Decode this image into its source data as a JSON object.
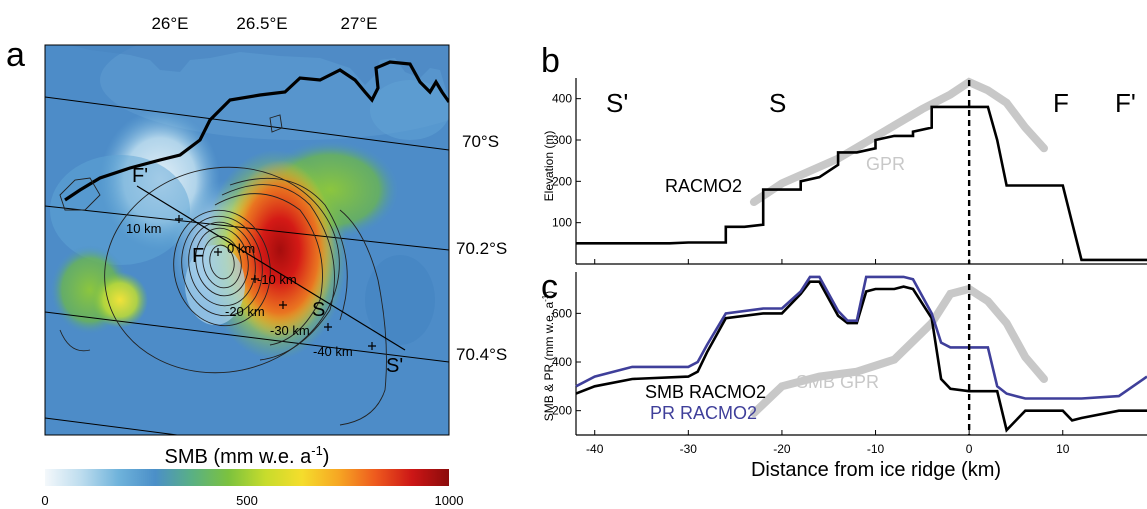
{
  "map_panel": {
    "panel_letter": "a",
    "lon_ticks": [
      "26°E",
      "26.5°E",
      "27°E"
    ],
    "lat_ticks": [
      "70°S",
      "70.2°S",
      "70.4°S"
    ],
    "transect_labels": [
      "F'",
      "F",
      "S",
      "S'"
    ],
    "km_labels": [
      "10 km",
      "0 km",
      "-10 km",
      "-20 km",
      "-30 km",
      "-40 km"
    ],
    "colorbar_title": "SMB (mm w.e. a",
    "colorbar_title_sup": "-1",
    "colorbar_title_end": ")",
    "colorbar_ticks": [
      "0",
      "500",
      "1000"
    ],
    "colorbar_stops": [
      "#f4f8fb",
      "#bcdcee",
      "#6fb3db",
      "#4b8fc8",
      "#59b084",
      "#7cc23e",
      "#c7dc2c",
      "#f5dd2c",
      "#f6a623",
      "#ee5a1e",
      "#cc1616",
      "#8b0b0b"
    ]
  },
  "panel_b": {
    "panel_letter": "b",
    "ylabel": "Elevation (m)",
    "labels": {
      "s_prime": "S'",
      "s": "S",
      "f": "F",
      "f_prime": "F'",
      "racmo": "RACMO2",
      "gpr": "GPR"
    }
  },
  "panel_c": {
    "panel_letter": "c",
    "ylabel": "SMB & PR (mm w.e. a",
    "ylabel_sup": "-1",
    "ylabel_end": ")",
    "xlabel": "Distance from ice ridge (km)",
    "labels": {
      "smb_racmo": "SMB RACMO2",
      "pr_racmo": "PR RACMO2",
      "smb_gpr": "SMB GPR"
    }
  },
  "chart_data": [
    {
      "type": "line",
      "panel": "b",
      "ylabel": "Elevation (m)",
      "xlim": [
        -42,
        19
      ],
      "ylim": [
        0,
        450
      ],
      "xticks": [
        -40,
        -30,
        -20,
        -10,
        0,
        10
      ],
      "yticks": [
        100,
        200,
        300,
        400
      ],
      "series": [
        {
          "name": "RACMO2",
          "color": "#000000",
          "x": [
            -42,
            -36,
            -32,
            -30,
            -26,
            -26,
            -24,
            -22,
            -22,
            -20,
            -18,
            -18,
            -16,
            -14,
            -14,
            -12,
            -10,
            -10,
            -8,
            -6,
            -6,
            -4,
            -4,
            0,
            2,
            3,
            4,
            6,
            10,
            11,
            12,
            16,
            18,
            19
          ],
          "y": [
            50,
            50,
            50,
            52,
            52,
            90,
            90,
            95,
            180,
            180,
            180,
            200,
            210,
            240,
            270,
            270,
            280,
            300,
            310,
            310,
            320,
            330,
            380,
            380,
            380,
            300,
            190,
            190,
            190,
            100,
            10,
            10,
            10,
            10
          ]
        },
        {
          "name": "GPR",
          "color": "#c8c8c8",
          "x": [
            -23,
            -20,
            -17,
            -14,
            -11,
            -8,
            -5,
            -2,
            0,
            2,
            4,
            6,
            8
          ],
          "y": [
            150,
            195,
            225,
            255,
            295,
            335,
            375,
            410,
            440,
            420,
            390,
            330,
            280
          ]
        }
      ],
      "vline_x": 0
    },
    {
      "type": "line",
      "panel": "c",
      "ylabel": "SMB & PR (mm w.e. a-1)",
      "xlabel": "Distance from ice ridge (km)",
      "xlim": [
        -42,
        19
      ],
      "ylim": [
        100,
        770
      ],
      "xticks": [
        -40,
        -30,
        -20,
        -10,
        0,
        10
      ],
      "yticks": [
        200,
        400,
        600
      ],
      "series": [
        {
          "name": "SMB RACMO2",
          "color": "#000000",
          "x": [
            -42,
            -40,
            -36,
            -30,
            -29,
            -28,
            -26,
            -22,
            -20,
            -18,
            -17,
            -16,
            -14,
            -13,
            -12,
            -11,
            -10,
            -8,
            -7,
            -6,
            -4,
            -3,
            -2,
            0,
            2,
            3,
            4,
            5,
            6,
            10,
            11,
            12,
            16,
            19
          ],
          "y": [
            270,
            300,
            330,
            340,
            360,
            440,
            580,
            600,
            600,
            680,
            730,
            730,
            590,
            560,
            560,
            690,
            700,
            700,
            710,
            700,
            580,
            330,
            290,
            280,
            280,
            280,
            120,
            160,
            200,
            200,
            160,
            170,
            200,
            200
          ]
        },
        {
          "name": "PR RACMO2",
          "color": "#3f3f9a",
          "x": [
            -42,
            -40,
            -36,
            -30,
            -29,
            -28,
            -26,
            -22,
            -20,
            -18,
            -17,
            -16,
            -14,
            -13,
            -12,
            -11,
            -10,
            -8,
            -7,
            -6,
            -4,
            -3,
            -2,
            0,
            2,
            3,
            4,
            5,
            6,
            10,
            11,
            12,
            16,
            19
          ],
          "y": [
            300,
            340,
            380,
            380,
            400,
            470,
            600,
            620,
            620,
            690,
            750,
            750,
            610,
            570,
            570,
            750,
            750,
            750,
            750,
            740,
            600,
            480,
            460,
            460,
            460,
            300,
            270,
            260,
            250,
            250,
            250,
            250,
            260,
            340
          ]
        },
        {
          "name": "SMB GPR",
          "color": "#c8c8c8",
          "x": [
            -23,
            -20,
            -16,
            -12,
            -8,
            -4,
            -2,
            0,
            2,
            4,
            6,
            8
          ],
          "y": [
            190,
            300,
            340,
            360,
            410,
            560,
            680,
            700,
            650,
            560,
            420,
            330
          ]
        }
      ],
      "vline_x": 0
    }
  ]
}
